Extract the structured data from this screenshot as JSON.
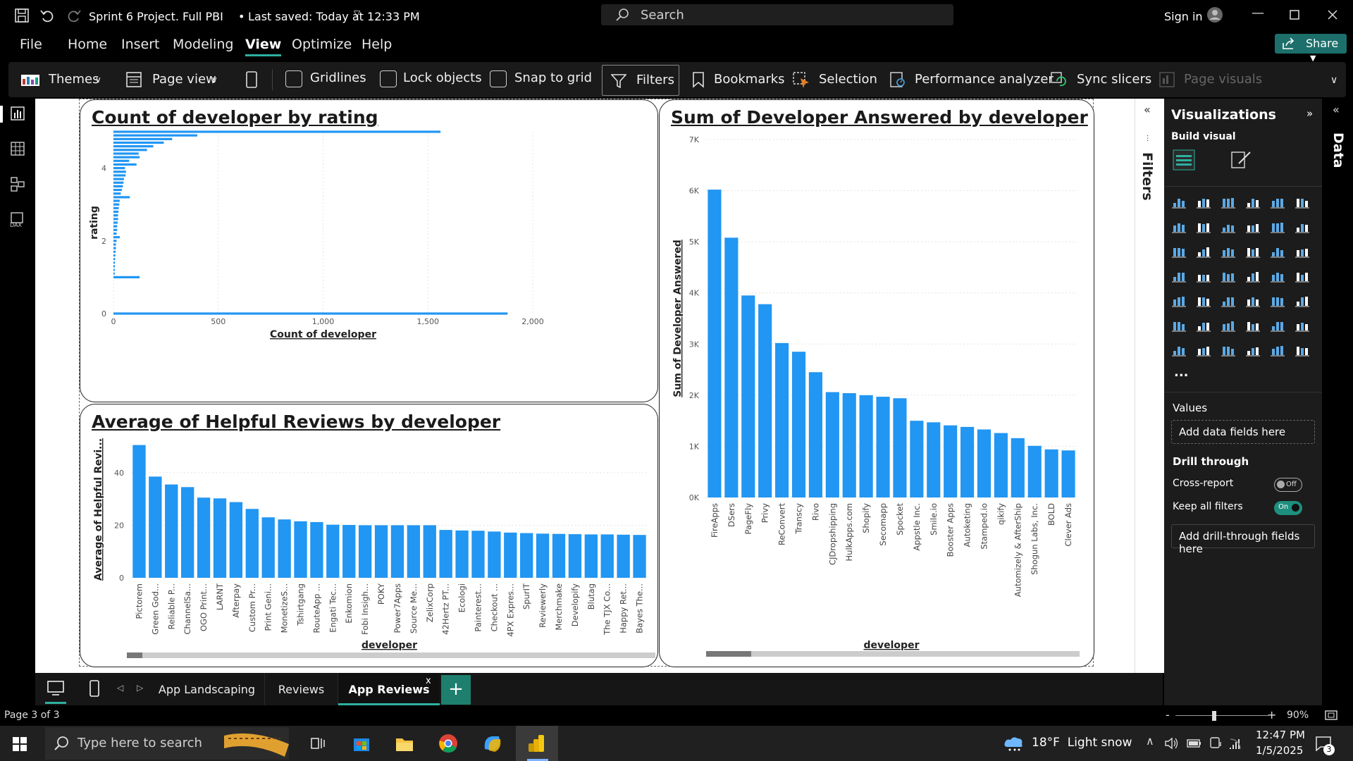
{
  "titlebar": {
    "doc_title": "Sprint 6 Project. Full PBI",
    "saved": "Last saved: Today at 12:33 PM",
    "search_placeholder": "Search",
    "sign_in": "Sign in"
  },
  "menu": [
    "File",
    "Home",
    "Insert",
    "Modeling",
    "View",
    "Optimize",
    "Help"
  ],
  "share_label": "Share",
  "ribbon": {
    "themes": "Themes",
    "page_view": "Page view",
    "gridlines": "Gridlines",
    "lock_objects": "Lock objects",
    "snap_to_grid": "Snap to grid",
    "filters": "Filters",
    "bookmarks": "Bookmarks",
    "selection": "Selection",
    "performance": "Performance analyzer",
    "sync_slicers": "Sync slicers",
    "page_visuals": "Page visuals"
  },
  "accent_color": "#2196f3",
  "chart_data": [
    {
      "type": "bar",
      "orientation": "horizontal",
      "title": "Count of developer by rating",
      "xlabel": "Count of developer",
      "ylabel": "rating",
      "x_ticks": [
        "0",
        "500",
        "1,000",
        "1,500",
        "2,000"
      ],
      "y_ticks": [
        "0",
        "2",
        "4"
      ],
      "xlim": [
        0,
        2000
      ],
      "ylim": [
        0,
        5
      ],
      "bars": [
        {
          "rating": 5.0,
          "count": 1560
        },
        {
          "rating": 4.9,
          "count": 400
        },
        {
          "rating": 4.8,
          "count": 280
        },
        {
          "rating": 4.7,
          "count": 240
        },
        {
          "rating": 4.6,
          "count": 190
        },
        {
          "rating": 4.5,
          "count": 160
        },
        {
          "rating": 4.4,
          "count": 120
        },
        {
          "rating": 4.3,
          "count": 125
        },
        {
          "rating": 4.2,
          "count": 75
        },
        {
          "rating": 4.1,
          "count": 110
        },
        {
          "rating": 4.0,
          "count": 55
        },
        {
          "rating": 3.9,
          "count": 60
        },
        {
          "rating": 3.8,
          "count": 58
        },
        {
          "rating": 3.7,
          "count": 50
        },
        {
          "rating": 3.6,
          "count": 48
        },
        {
          "rating": 3.5,
          "count": 45
        },
        {
          "rating": 3.4,
          "count": 40
        },
        {
          "rating": 3.3,
          "count": 35
        },
        {
          "rating": 3.2,
          "count": 78
        },
        {
          "rating": 3.1,
          "count": 30
        },
        {
          "rating": 3.0,
          "count": 28
        },
        {
          "rating": 2.9,
          "count": 25
        },
        {
          "rating": 2.8,
          "count": 24
        },
        {
          "rating": 2.7,
          "count": 22
        },
        {
          "rating": 2.6,
          "count": 22
        },
        {
          "rating": 2.5,
          "count": 20
        },
        {
          "rating": 2.4,
          "count": 18
        },
        {
          "rating": 2.3,
          "count": 18
        },
        {
          "rating": 2.2,
          "count": 15
        },
        {
          "rating": 2.1,
          "count": 30
        },
        {
          "rating": 2.0,
          "count": 15
        },
        {
          "rating": 1.9,
          "count": 12
        },
        {
          "rating": 1.8,
          "count": 12
        },
        {
          "rating": 1.7,
          "count": 10
        },
        {
          "rating": 1.6,
          "count": 9
        },
        {
          "rating": 1.5,
          "count": 8
        },
        {
          "rating": 1.4,
          "count": 7
        },
        {
          "rating": 1.3,
          "count": 7
        },
        {
          "rating": 1.2,
          "count": 6
        },
        {
          "rating": 1.1,
          "count": 6
        },
        {
          "rating": 1.0,
          "count": 125
        },
        {
          "rating": 0.0,
          "count": 1880
        }
      ]
    },
    {
      "type": "bar",
      "title": "Average of Helpful Reviews by developer",
      "xlabel": "developer",
      "ylabel": "Average of Helpful Revi...",
      "y_ticks": [
        "0",
        "20",
        "40"
      ],
      "ylim": [
        0,
        52
      ],
      "categories": [
        "Pictorem",
        "Green God...",
        "Reliable P...",
        "ChannelSa...",
        "OGO Print...",
        "LARNT",
        "Afterpay",
        "Custom Pr...",
        "Print Geni...",
        "MonetizeS...",
        "Tshirtgang",
        "RouteApp ...",
        "Engati Tec...",
        "Enkomion",
        "Fobi Insigh...",
        "POKY",
        "Power7Apps",
        "Source Me...",
        "ZelixCorp",
        "42Hertz PT...",
        "Ecologi",
        "Painterest...",
        "Checkout ...",
        "4PX Expres...",
        "SpurIT",
        "Reviewerly",
        "Merchmake",
        "Developify",
        "Blutag",
        "The TJX Co...",
        "Happy Ret...",
        "Bayes The..."
      ],
      "values": [
        50.5,
        38.5,
        35.5,
        34.5,
        30.5,
        30.2,
        28.8,
        26.2,
        23,
        22.2,
        21.5,
        21.2,
        20.2,
        20.1,
        20,
        20,
        20,
        20,
        20,
        18.2,
        18,
        17.9,
        17.6,
        17.2,
        17,
        16.8,
        16.7,
        16.6,
        16.5,
        16.5,
        16.4,
        16.3
      ]
    },
    {
      "type": "bar",
      "title": "Sum of Developer Answered by developer",
      "xlabel": "developer",
      "ylabel": "Sum of Developer Answered",
      "y_ticks": [
        "0K",
        "1K",
        "2K",
        "3K",
        "4K",
        "5K",
        "6K",
        "7K"
      ],
      "ylim": [
        0,
        7000
      ],
      "categories": [
        "FireApps",
        "DSers",
        "PageFly",
        "Privy",
        "ReConvert",
        "Transcy",
        "Rivo",
        "CJDropshipping",
        "HulkApps.com",
        "Shopify",
        "Secomapp",
        "Spocket",
        "Appstle Inc.",
        "Smile.io",
        "Booster Apps",
        "Autoketing",
        "Stamped.io",
        "qikify",
        "Automizely & AfterShip",
        "Shogun Labs, Inc.",
        "BOLD",
        "Clever Ads"
      ],
      "values": [
        6020,
        5080,
        3950,
        3780,
        3020,
        2850,
        2450,
        2060,
        2040,
        2000,
        1970,
        1940,
        1500,
        1470,
        1410,
        1380,
        1330,
        1260,
        1160,
        1010,
        940,
        920
      ]
    }
  ],
  "filters_label": "Filters",
  "viz_pane": {
    "title": "Visualizations",
    "build_visual": "Build visual",
    "values": "Values",
    "add_data_fields": "Add data fields here",
    "drill_through": "Drill through",
    "cross_report": "Cross-report",
    "cross_report_state": "Off",
    "keep_all_filters": "Keep all filters",
    "keep_all_filters_state": "On",
    "add_drill_through": "Add drill-through fields here",
    "more": "...",
    "data_label": "Data"
  },
  "tabs": [
    {
      "label": "App Landscaping",
      "active": false
    },
    {
      "label": "Reviews",
      "active": false
    },
    {
      "label": "App Reviews",
      "active": true
    }
  ],
  "tab_close": "x",
  "tab_add": "+",
  "status": {
    "page": "Page 3 of 3",
    "zoom": "90%",
    "zoom_minus": "-",
    "zoom_plus": "+"
  },
  "taskbar": {
    "search_placeholder": "Type here to search",
    "weather": "18°F  Light snow",
    "time": "12:47 PM",
    "date": "1/5/2025",
    "notification_count": "3"
  }
}
